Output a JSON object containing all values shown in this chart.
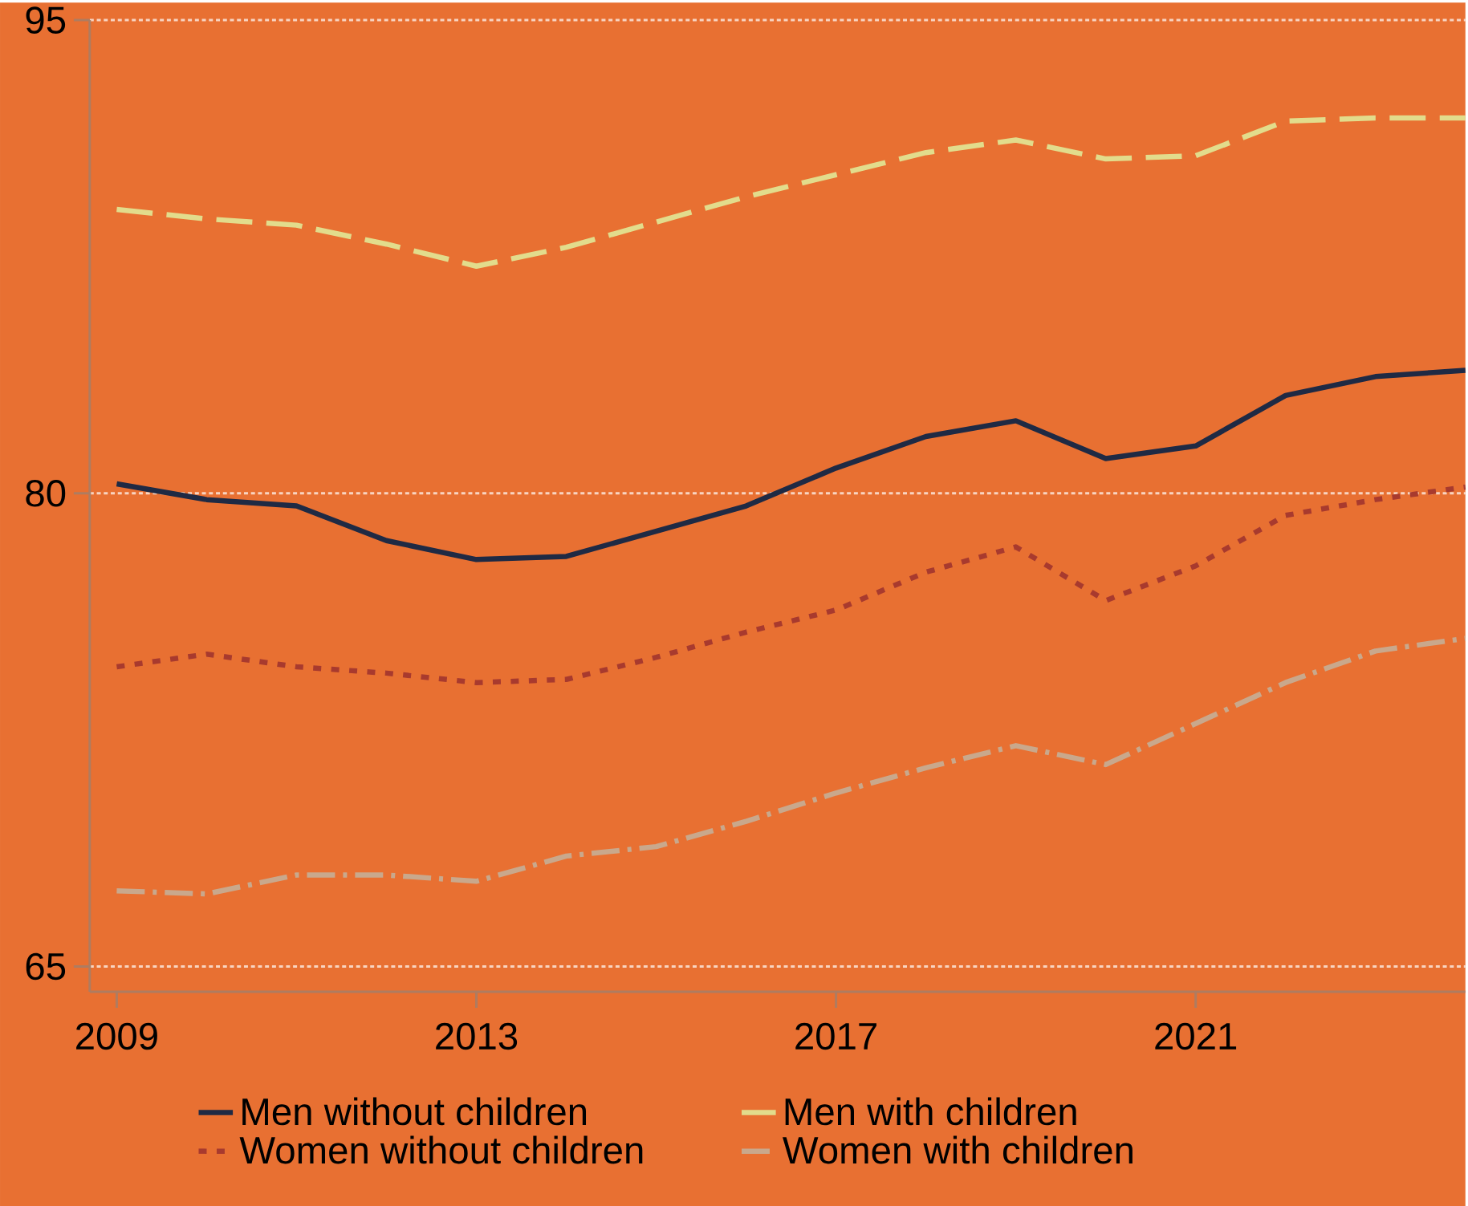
{
  "chart_data": {
    "type": "line",
    "x": [
      2009,
      2010,
      2011,
      2012,
      2013,
      2014,
      2015,
      2016,
      2017,
      2018,
      2019,
      2020,
      2021,
      2022,
      2023,
      2024
    ],
    "series": [
      {
        "name": "Men without children",
        "color": "#1f2a44",
        "line_style": "solid",
        "values": [
          80.3,
          79.8,
          79.6,
          78.5,
          77.9,
          78.0,
          78.8,
          79.6,
          80.8,
          81.8,
          82.3,
          81.1,
          81.5,
          83.1,
          83.7,
          83.9
        ]
      },
      {
        "name": "Men with children",
        "color": "#e2dc8c",
        "line_style": "dashed",
        "values": [
          89.0,
          88.7,
          88.5,
          87.9,
          87.2,
          87.8,
          88.6,
          89.4,
          90.1,
          90.8,
          91.2,
          90.6,
          90.7,
          91.8,
          91.9,
          91.9
        ]
      },
      {
        "name": "Women without children",
        "color": "#a83a2e",
        "line_style": "dotted",
        "values": [
          74.5,
          74.9,
          74.5,
          74.3,
          74.0,
          74.1,
          74.8,
          75.6,
          76.3,
          77.5,
          78.3,
          76.6,
          77.7,
          79.3,
          79.8,
          80.2
        ]
      },
      {
        "name": "Women with children",
        "color": "#c9a88c",
        "line_style": "dashdot",
        "values": [
          67.4,
          67.3,
          67.9,
          67.9,
          67.7,
          68.5,
          68.8,
          69.6,
          70.5,
          71.3,
          72.0,
          71.4,
          72.7,
          74.0,
          75.0,
          75.4
        ]
      }
    ],
    "xlim": [
      2008.7,
      2024
    ],
    "ylim": [
      64.2,
      95
    ],
    "xticks": [
      2009,
      2013,
      2017,
      2021
    ],
    "yticks": [
      65,
      80,
      95
    ],
    "grid": "y",
    "legend": "bottom",
    "marker": "none"
  }
}
